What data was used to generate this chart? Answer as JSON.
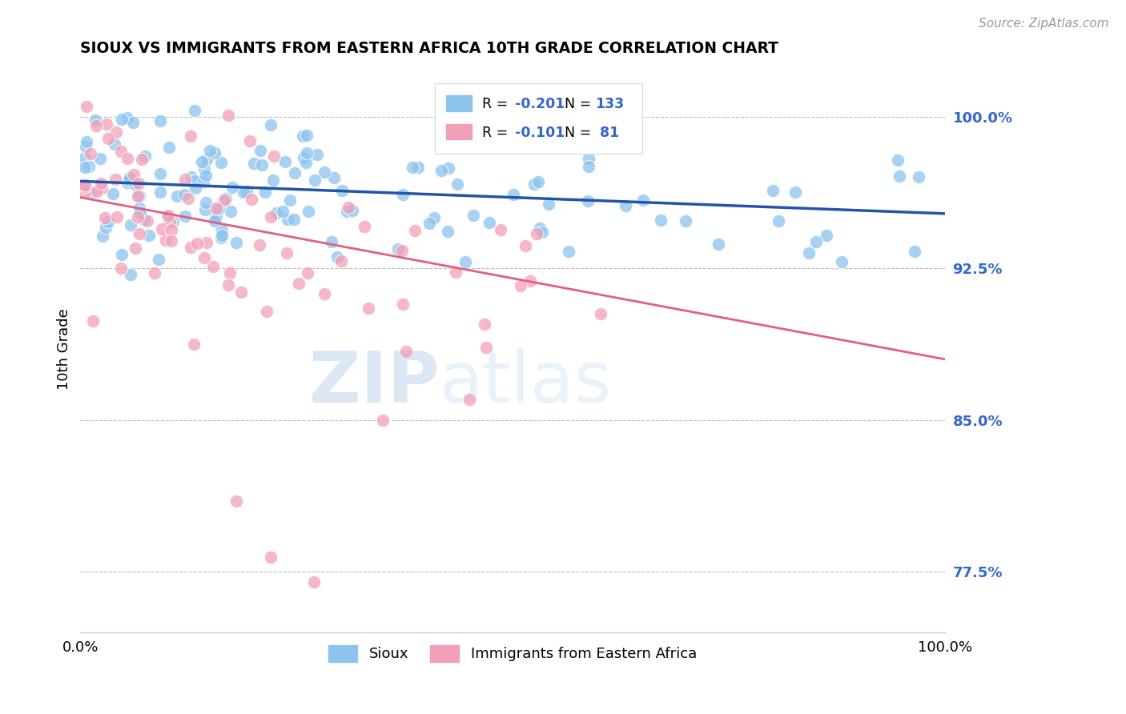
{
  "title": "SIOUX VS IMMIGRANTS FROM EASTERN AFRICA 10TH GRADE CORRELATION CHART",
  "source": "Source: ZipAtlas.com",
  "ylabel": "10th Grade",
  "ytick_values": [
    0.775,
    0.85,
    0.925,
    1.0
  ],
  "xmin": 0.0,
  "xmax": 1.0,
  "ymin": 0.745,
  "ymax": 1.025,
  "legend_blue_label": "Sioux",
  "legend_pink_label": "Immigrants from Eastern Africa",
  "blue_color": "#8CC4EE",
  "pink_color": "#F2A0B8",
  "trend_blue_color": "#2255AA",
  "trend_pink_color": "#E06080",
  "blue_trend_x0": 0.0,
  "blue_trend_y0": 0.968,
  "blue_trend_x1": 1.0,
  "blue_trend_y1": 0.952,
  "pink_trend_x0": 0.0,
  "pink_trend_y0": 0.96,
  "pink_trend_x1": 1.0,
  "pink_trend_y1": 0.88,
  "watermark_zip": "ZIP",
  "watermark_atlas": "atlas",
  "blue_r": "-0.201",
  "blue_n": "133",
  "pink_r": "-0.101",
  "pink_n": "81"
}
